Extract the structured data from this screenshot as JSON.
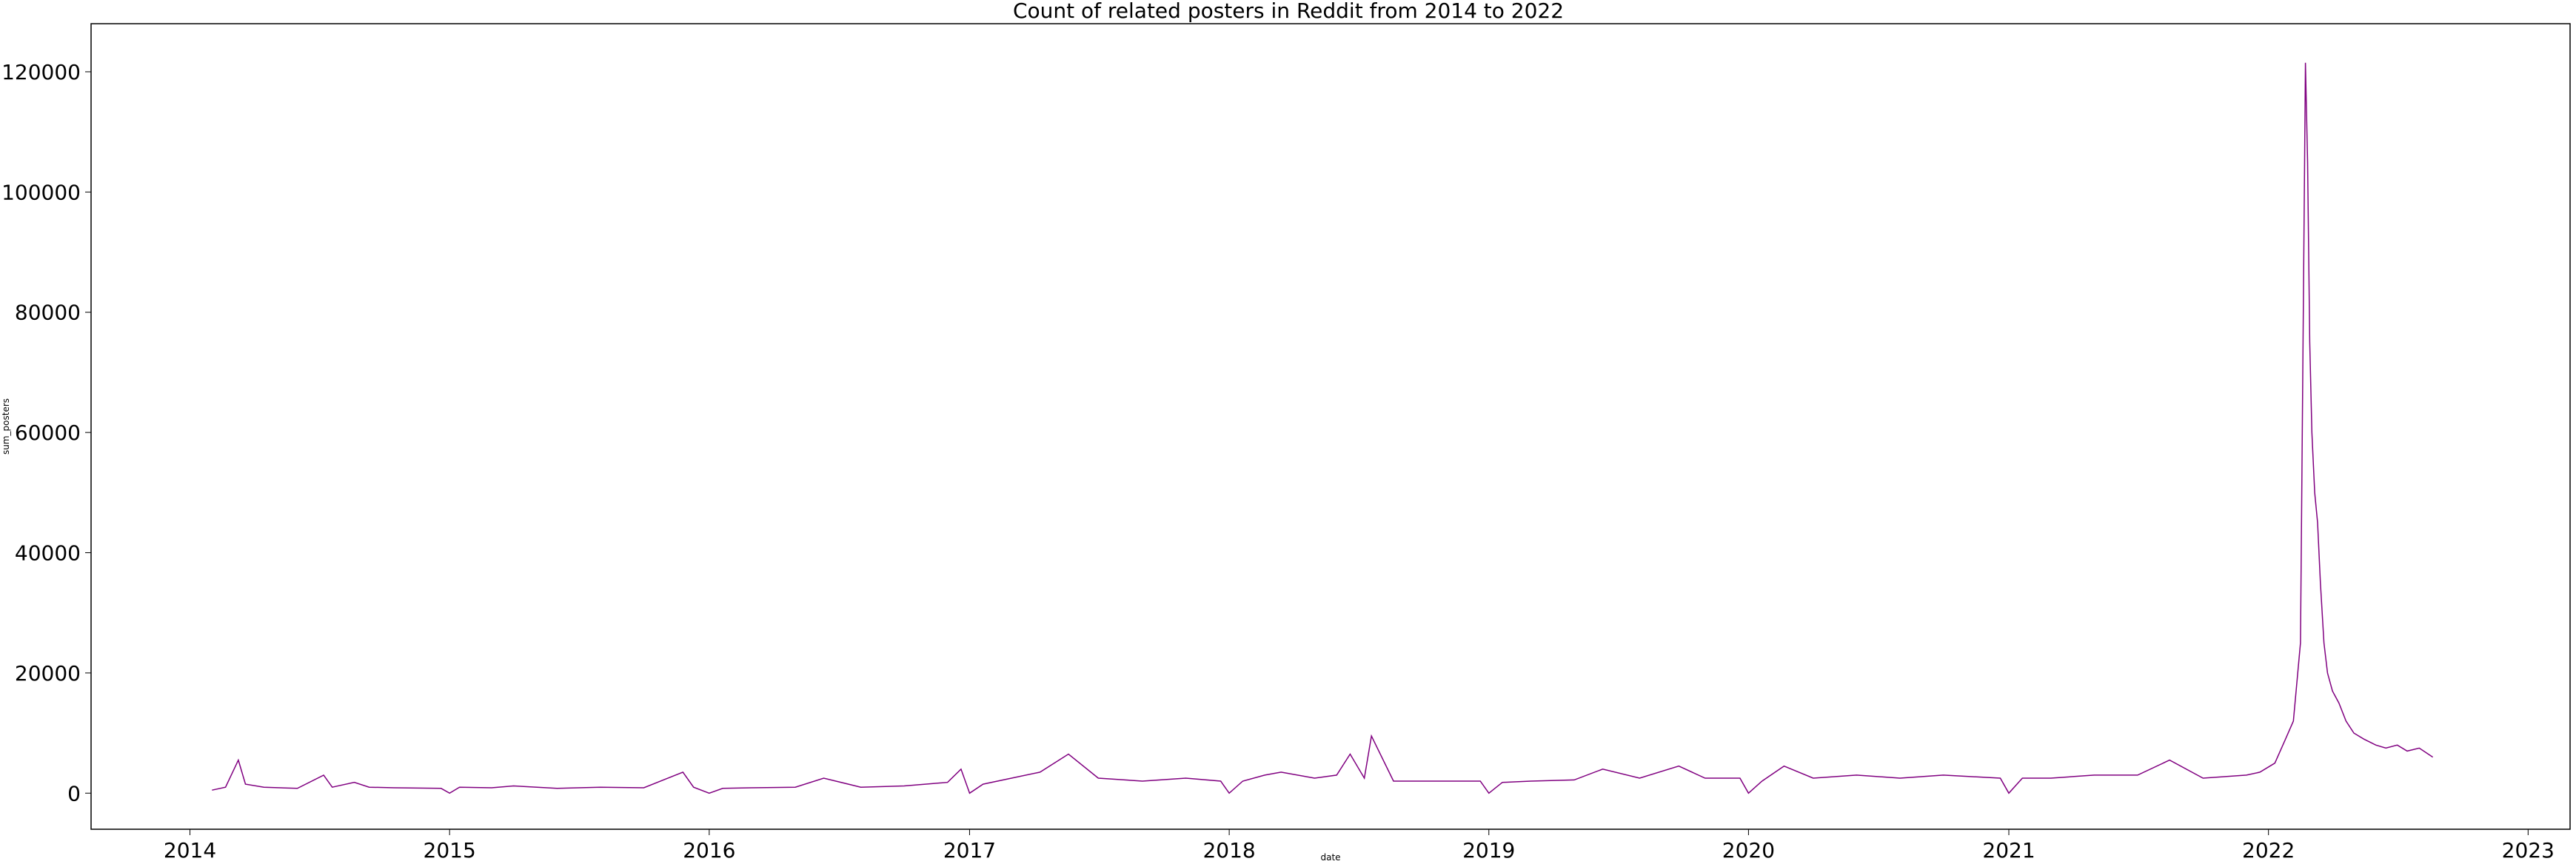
{
  "chart_data": {
    "type": "line",
    "title": "Count of related posters in Reddit from 2014 to 2022",
    "xlabel": "date",
    "ylabel": "sum_posters",
    "x_ticks": [
      "2014",
      "2015",
      "2016",
      "2017",
      "2018",
      "2019",
      "2020",
      "2021",
      "2022",
      "2023"
    ],
    "y_ticks": [
      "0",
      "20000",
      "40000",
      "60000",
      "80000",
      "100000",
      "120000"
    ],
    "xlim": [
      "2013-08-15",
      "2023-03-01"
    ],
    "ylim": [
      -6000,
      128000
    ],
    "grid": false,
    "legend": "none",
    "colors": {
      "series": "#800080",
      "axes": "#000000",
      "background": "#ffffff"
    },
    "series": [
      {
        "x": [
          "2014-02-01",
          "2014-02-20",
          "2014-03-10",
          "2014-03-20",
          "2014-04-15",
          "2014-06-01",
          "2014-07-08",
          "2014-07-20",
          "2014-08-20",
          "2014-09-10",
          "2014-10-15",
          "2014-12-20",
          "2015-01-01",
          "2015-01-15",
          "2015-03-01",
          "2015-04-01",
          "2015-06-01",
          "2015-08-01",
          "2015-10-01",
          "2015-11-25",
          "2015-12-10",
          "2016-01-01",
          "2016-01-20",
          "2016-03-01",
          "2016-05-01",
          "2016-06-10",
          "2016-08-01",
          "2016-10-01",
          "2016-12-01",
          "2016-12-20",
          "2017-01-01",
          "2017-01-20",
          "2017-03-01",
          "2017-04-10",
          "2017-05-20",
          "2017-07-01",
          "2017-09-01",
          "2017-11-01",
          "2017-12-20",
          "2018-01-01",
          "2018-01-20",
          "2018-02-20",
          "2018-03-15",
          "2018-05-01",
          "2018-06-01",
          "2018-06-20",
          "2018-07-10",
          "2018-07-20",
          "2018-08-20",
          "2018-10-01",
          "2018-12-20",
          "2019-01-01",
          "2019-01-20",
          "2019-03-01",
          "2019-05-01",
          "2019-06-10",
          "2019-08-01",
          "2019-09-25",
          "2019-11-01",
          "2019-12-20",
          "2020-01-01",
          "2020-01-20",
          "2020-02-20",
          "2020-04-01",
          "2020-06-01",
          "2020-08-01",
          "2020-10-01",
          "2020-12-20",
          "2021-01-01",
          "2021-01-20",
          "2021-03-01",
          "2021-05-01",
          "2021-07-01",
          "2021-08-15",
          "2021-10-01",
          "2021-12-01",
          "2021-12-20",
          "2022-01-10",
          "2022-01-25",
          "2022-02-05",
          "2022-02-15",
          "2022-02-22",
          "2022-02-25",
          "2022-02-28",
          "2022-03-03",
          "2022-03-07",
          "2022-03-11",
          "2022-03-15",
          "2022-03-20",
          "2022-03-25",
          "2022-04-01",
          "2022-04-10",
          "2022-04-20",
          "2022-05-01",
          "2022-05-15",
          "2022-06-01",
          "2022-06-15",
          "2022-07-01",
          "2022-07-15",
          "2022-08-01",
          "2022-08-20"
        ],
        "y": [
          500,
          1000,
          5500,
          1500,
          1000,
          800,
          3000,
          1000,
          1800,
          1000,
          900,
          800,
          0,
          1000,
          900,
          1200,
          800,
          1000,
          900,
          3500,
          1000,
          0,
          800,
          900,
          1000,
          2500,
          1000,
          1200,
          1800,
          4000,
          0,
          1500,
          2500,
          3500,
          6500,
          2500,
          2000,
          2500,
          2000,
          0,
          2000,
          3000,
          3500,
          2500,
          3000,
          6500,
          2500,
          9500,
          2000,
          2000,
          2000,
          0,
          1800,
          2000,
          2200,
          4000,
          2500,
          4500,
          2500,
          2500,
          0,
          2000,
          4500,
          2500,
          3000,
          2500,
          3000,
          2500,
          0,
          2500,
          2500,
          3000,
          3000,
          5500,
          2500,
          3000,
          3500,
          5000,
          9000,
          12000,
          25000,
          121500,
          105000,
          75000,
          60000,
          50000,
          45000,
          35000,
          25000,
          20000,
          17000,
          15000,
          12000,
          10000,
          9000,
          8000,
          7500,
          8000,
          7000,
          7500,
          6000
        ]
      }
    ]
  }
}
